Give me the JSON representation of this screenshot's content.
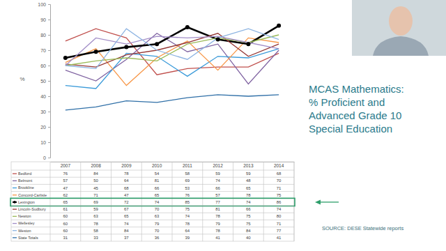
{
  "chart_data": {
    "type": "line",
    "title": "MCAS Mathematics: % Proficient and Advanced Grade 10 Special Education",
    "ylabel": "%",
    "annotations": [
      "SOURCE: DESE Statewide reports"
    ],
    "categories": [
      "2007",
      "2008",
      "2009",
      "2010",
      "2011",
      "2012",
      "2013",
      "2014"
    ],
    "ylim": [
      0,
      100
    ],
    "yticks": [
      0,
      10,
      20,
      30,
      40,
      50,
      60,
      70,
      80,
      90,
      100
    ],
    "grid": false,
    "data_labels": true,
    "series": [
      {
        "name": "Bedford",
        "color": "#c0504d",
        "values": [
          76,
          84,
          78,
          54,
          58,
          59,
          59,
          68
        ]
      },
      {
        "name": "Belmont",
        "color": "#8064a2",
        "values": [
          57,
          50,
          64,
          81,
          69,
          74,
          48,
          70
        ]
      },
      {
        "name": "Brookline",
        "color": "#3a9ad9",
        "values": [
          47,
          45,
          68,
          66,
          53,
          66,
          65,
          71
        ]
      },
      {
        "name": "Concord-Carlisle",
        "color": "#f79646",
        "values": [
          62,
          71,
          47,
          65,
          76,
          57,
          78,
          75
        ]
      },
      {
        "name": "Lexington",
        "color": "#000000",
        "marker": "circle",
        "values": [
          65,
          69,
          72,
          74,
          85,
          77,
          74,
          86
        ]
      },
      {
        "name": "Lincoln-Sudbury",
        "color": "#953735",
        "values": [
          61,
          59,
          67,
          70,
          75,
          81,
          66,
          74
        ]
      },
      {
        "name": "Newton",
        "color": "#9bbb59",
        "values": [
          60,
          63,
          65,
          63,
          74,
          78,
          75,
          80
        ]
      },
      {
        "name": "Wellesley",
        "color": "#a28ec7",
        "values": [
          60,
          78,
          74,
          79,
          78,
          79,
          75,
          71
        ]
      },
      {
        "name": "Weston",
        "color": "#8db4e2",
        "values": [
          60,
          58,
          84,
          70,
          64,
          78,
          84,
          77
        ]
      },
      {
        "name": "State Totals",
        "color": "#2f6fa7",
        "values": [
          31,
          33,
          37,
          36,
          39,
          41,
          40,
          41
        ]
      }
    ]
  }
}
